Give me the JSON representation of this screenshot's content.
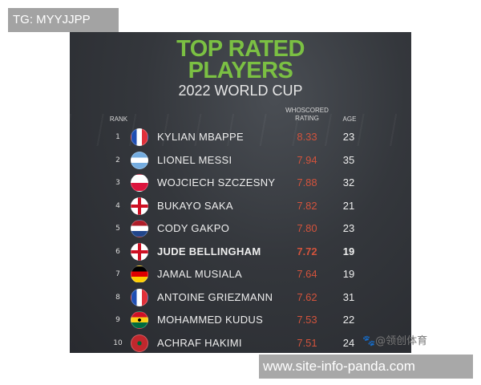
{
  "tag_label": "TG: MYYJJPP",
  "title_line1": "TOP RATED",
  "title_line2": "PLAYERS",
  "subtitle": "2022 WORLD CUP",
  "headers": {
    "rank": "RANK",
    "rating_line1": "WHOSCORED",
    "rating_line2": "RATING",
    "age": "AGE"
  },
  "colors": {
    "title": "#7bc043",
    "rating": "#d2533c",
    "background": "#34373c"
  },
  "players": [
    {
      "rank": "1",
      "flag": "france",
      "name": "KYLIAN MBAPPE",
      "rating": "8.33",
      "age": "23"
    },
    {
      "rank": "2",
      "flag": "argentina",
      "name": "LIONEL MESSI",
      "rating": "7.94",
      "age": "35"
    },
    {
      "rank": "3",
      "flag": "poland",
      "name": "WOJCIECH SZCZESNY",
      "rating": "7.88",
      "age": "32"
    },
    {
      "rank": "4",
      "flag": "england",
      "name": "BUKAYO SAKA",
      "rating": "7.82",
      "age": "21"
    },
    {
      "rank": "5",
      "flag": "netherlands",
      "name": "CODY GAKPO",
      "rating": "7.80",
      "age": "23"
    },
    {
      "rank": "6",
      "flag": "england",
      "name": "JUDE BELLINGHAM",
      "rating": "7.72",
      "age": "19",
      "highlight": true
    },
    {
      "rank": "7",
      "flag": "germany",
      "name": "JAMAL MUSIALA",
      "rating": "7.64",
      "age": "19"
    },
    {
      "rank": "8",
      "flag": "france",
      "name": "ANTOINE GRIEZMANN",
      "rating": "7.62",
      "age": "31"
    },
    {
      "rank": "9",
      "flag": "ghana",
      "name": "MOHAMMED KUDUS",
      "rating": "7.53",
      "age": "22"
    },
    {
      "rank": "10",
      "flag": "morocco",
      "name": "ACHRAF HAKIMI",
      "rating": "7.51",
      "age": "24"
    }
  ],
  "watermark": "🐾@领创体育",
  "site_label": "www.site-info-panda.com"
}
